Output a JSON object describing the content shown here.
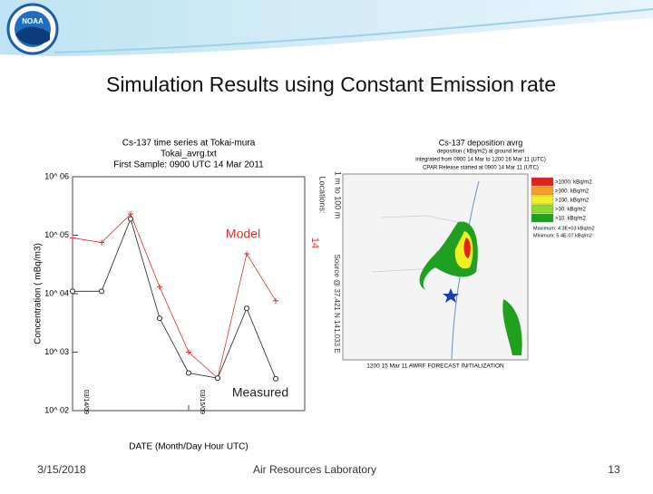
{
  "logo": "NOAA",
  "slide": {
    "title": "Simulation Results using Constant Emission rate",
    "footer_date": "3/15/2018",
    "footer_org": "Air Resources Laboratory",
    "page": "13"
  },
  "chart_data": {
    "type": "line",
    "title_lines": [
      "Cs-137 time series at Tokai-mura",
      "Tokai_avrg.txt",
      "First Sample: 0900 UTC 14 Mar 2011"
    ],
    "x_label": "DATE (Month/Day Hour UTC)",
    "y_label": "Concentration ( mBq/m3)",
    "side_labels": [
      "Locations:",
      "1 m to 100 m",
      "14",
      "Source @ 37.421 N 141.033 E"
    ],
    "log_y": true,
    "x": [
      0,
      6,
      12,
      18,
      24,
      30,
      36,
      42
    ],
    "xlim": [
      0,
      48
    ],
    "xticks": [
      {
        "value": 0,
        "label": "03/14/09"
      },
      {
        "value": 24,
        "label": "03/15/09"
      }
    ],
    "ylim": [
      100,
      1000000
    ],
    "yticks": [
      {
        "value": 100,
        "label": "10^ 02"
      },
      {
        "value": 1000,
        "label": "10^ 03"
      },
      {
        "value": 10000,
        "label": "10^ 04"
      },
      {
        "value": 100000,
        "label": "10^ 05"
      },
      {
        "value": 1000000,
        "label": "10^ 06"
      }
    ],
    "series": [
      {
        "name": "Model",
        "color": "#e03030",
        "marker": "plus",
        "values": [
          90000,
          75000,
          230000,
          13000,
          1000,
          360,
          48000,
          7600
        ]
      },
      {
        "name": "Measured",
        "color": "#222222",
        "marker": "circle",
        "values": [
          11000,
          11000,
          190000,
          3800,
          440,
          360,
          5600,
          350
        ]
      }
    ]
  },
  "map": {
    "title_lines": [
      "Cs-137 deposition avrg",
      "deposition ( kBq/m2) at ground level",
      "integrated from 0900 14 Mar to 1200 16 Mar 11 (UTC)",
      "CPAR Release started at 0900 14 Mar 11 (UTC)"
    ],
    "legend": [
      {
        "label": ">1000. kBq/m2",
        "color": "#e8201c"
      },
      {
        "label": ">300. kBq/m2",
        "color": "#f5a020"
      },
      {
        "label": ">100. kBq/m2",
        "color": "#f0f020"
      },
      {
        "label": ">30. kBq/m2",
        "color": "#90d830"
      },
      {
        "label": ">10. kBq/m2",
        "color": "#20a020"
      }
    ],
    "stats": [
      "Maximum: 4.3E+03 kBq/m2",
      "Minimum: 5.4E-07 kBq/m2"
    ],
    "footer": "1200 15 Mar 11 AWRF FORECAST INITIALIZATION"
  }
}
